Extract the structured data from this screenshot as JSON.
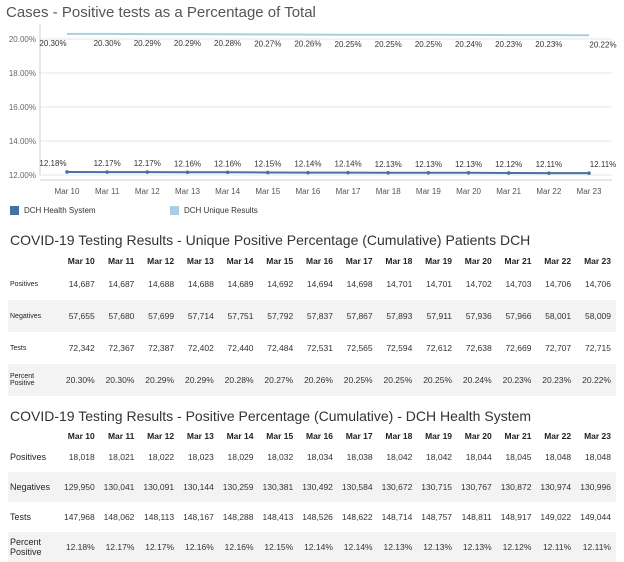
{
  "chart_data": {
    "type": "line",
    "title": "Cases - Positive tests as a Percentage of Total",
    "categories": [
      "Mar 10",
      "Mar 11",
      "Mar 12",
      "Mar 13",
      "Mar 14",
      "Mar 15",
      "Mar 16",
      "Mar 17",
      "Mar 18",
      "Mar 19",
      "Mar 20",
      "Mar 21",
      "Mar 22",
      "Mar 23"
    ],
    "y_ticks": [
      "20.00%",
      "18.00%",
      "16.00%",
      "14.00%",
      "12.00%"
    ],
    "ylim": [
      12.0,
      20.0
    ],
    "series": [
      {
        "name": "DCH Health System",
        "color": "#4472a8",
        "values": [
          12.18,
          12.17,
          12.17,
          12.16,
          12.16,
          12.15,
          12.14,
          12.14,
          12.13,
          12.13,
          12.13,
          12.12,
          12.11,
          12.11
        ],
        "labels": [
          "12.18%",
          "12.17%",
          "12.17%",
          "12.16%",
          "12.16%",
          "12.15%",
          "12.14%",
          "12.14%",
          "12.13%",
          "12.13%",
          "12.13%",
          "12.12%",
          "12.11%",
          "12.11%"
        ]
      },
      {
        "name": "DCH Unique Results",
        "color": "#a9cde3",
        "values": [
          20.3,
          20.3,
          20.29,
          20.29,
          20.28,
          20.27,
          20.26,
          20.25,
          20.25,
          20.25,
          20.24,
          20.23,
          20.23,
          20.22
        ],
        "labels": [
          "20.30%",
          "20.30%",
          "20.29%",
          "20.29%",
          "20.28%",
          "20.27%",
          "20.26%",
          "20.25%",
          "20.25%",
          "20.25%",
          "20.24%",
          "20.23%",
          "20.23%",
          "20.22%"
        ]
      }
    ],
    "grid": true,
    "legend": "bottom-left"
  },
  "table1": {
    "title": "COVID-19 Testing Results - Unique Positive Percentage (Cumulative) Patients DCH",
    "columns": [
      "Mar 10",
      "Mar 11",
      "Mar 12",
      "Mar 13",
      "Mar 14",
      "Mar 15",
      "Mar 16",
      "Mar 17",
      "Mar 18",
      "Mar 19",
      "Mar 20",
      "Mar 21",
      "Mar 22",
      "Mar 23"
    ],
    "rows": [
      {
        "label": "Positives",
        "values": [
          "14,687",
          "14,687",
          "14,688",
          "14,688",
          "14,689",
          "14,692",
          "14,694",
          "14,698",
          "14,701",
          "14,701",
          "14,702",
          "14,703",
          "14,706",
          "14,706"
        ]
      },
      {
        "label": "Negatives",
        "values": [
          "57,655",
          "57,680",
          "57,699",
          "57,714",
          "57,751",
          "57,792",
          "57,837",
          "57,867",
          "57,893",
          "57,911",
          "57,936",
          "57,966",
          "58,001",
          "58,009"
        ]
      },
      {
        "label": "Tests",
        "values": [
          "72,342",
          "72,367",
          "72,387",
          "72,402",
          "72,440",
          "72,484",
          "72,531",
          "72,565",
          "72,594",
          "72,612",
          "72,638",
          "72,669",
          "72,707",
          "72,715"
        ]
      },
      {
        "label": "Percent Positive",
        "values": [
          "20.30%",
          "20.30%",
          "20.29%",
          "20.29%",
          "20.28%",
          "20.27%",
          "20.26%",
          "20.25%",
          "20.25%",
          "20.25%",
          "20.24%",
          "20.23%",
          "20.23%",
          "20.22%"
        ]
      }
    ]
  },
  "table2": {
    "title": "COVID-19 Testing Results - Positive Percentage (Cumulative) - DCH Health System",
    "columns": [
      "Mar 10",
      "Mar 11",
      "Mar 12",
      "Mar 13",
      "Mar 14",
      "Mar 15",
      "Mar 16",
      "Mar 17",
      "Mar 18",
      "Mar 19",
      "Mar 20",
      "Mar 21",
      "Mar 22",
      "Mar 23"
    ],
    "rows": [
      {
        "label": "Positives",
        "values": [
          "18,018",
          "18,021",
          "18,022",
          "18,023",
          "18,029",
          "18,032",
          "18,034",
          "18,038",
          "18,042",
          "18,042",
          "18,044",
          "18,045",
          "18,048",
          "18,048"
        ]
      },
      {
        "label": "Negatives",
        "values": [
          "129,950",
          "130,041",
          "130,091",
          "130,144",
          "130,259",
          "130,381",
          "130,492",
          "130,584",
          "130,672",
          "130,715",
          "130,767",
          "130,872",
          "130,974",
          "130,996"
        ]
      },
      {
        "label": "Tests",
        "values": [
          "147,968",
          "148,062",
          "148,113",
          "148,167",
          "148,288",
          "148,413",
          "148,526",
          "148,622",
          "148,714",
          "148,757",
          "148,811",
          "148,917",
          "149,022",
          "149,044"
        ]
      },
      {
        "label": "Percent Positive",
        "values": [
          "12.18%",
          "12.17%",
          "12.17%",
          "12.16%",
          "12.16%",
          "12.15%",
          "12.14%",
          "12.14%",
          "12.13%",
          "12.13%",
          "12.13%",
          "12.12%",
          "12.11%",
          "12.11%"
        ]
      }
    ]
  }
}
